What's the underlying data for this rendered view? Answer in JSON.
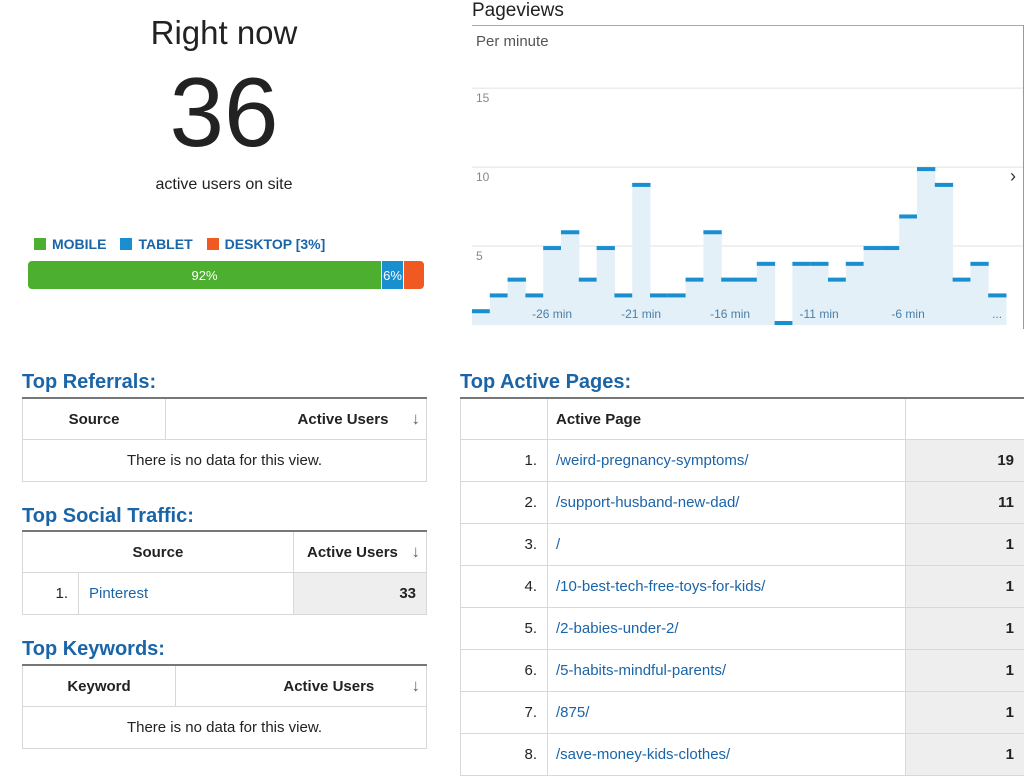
{
  "right_now": {
    "title": "Right now",
    "count": "36",
    "subtitle": "active users on site"
  },
  "devices": {
    "legend": [
      {
        "label": "MOBILE",
        "color": "#4caf2f"
      },
      {
        "label": "TABLET",
        "color": "#1a8fd0"
      },
      {
        "label": "DESKTOP [3%]",
        "color": "#f05a22"
      }
    ],
    "bar": [
      {
        "label": "92%",
        "percent": 92,
        "color": "#4caf2f"
      },
      {
        "label": "6%",
        "percent": 6,
        "color": "#1a8fd0"
      },
      {
        "label": "",
        "percent": 3,
        "color": "#f05a22"
      }
    ]
  },
  "pageviews": {
    "title": "Pageviews",
    "subtitle": "Per minute",
    "next_icon": "chevron-right-icon"
  },
  "chart_data": {
    "type": "bar",
    "ylim": [
      0,
      19
    ],
    "yticks": [
      "5",
      "10",
      "15"
    ],
    "ytick_values": [
      5,
      10,
      15
    ],
    "x_labels": [
      "-26 min",
      "-21 min",
      "-16 min",
      "-11 min",
      "-6 min",
      "..."
    ],
    "x_label_minutes": [
      -26,
      -21,
      -16,
      -11,
      -6,
      -1
    ],
    "minutes": [
      -30,
      -29,
      -28,
      -27,
      -26,
      -25,
      -24,
      -23,
      -22,
      -21,
      -20,
      -19,
      -18,
      -17,
      -16,
      -15,
      -14,
      -13,
      -12,
      -11,
      -10,
      -9,
      -8,
      -7,
      -6,
      -5,
      -4,
      -3,
      -2,
      -1
    ],
    "values": [
      1,
      2,
      3,
      2,
      5,
      6,
      3,
      5,
      2,
      9,
      2,
      2,
      3,
      6,
      3,
      3,
      4,
      0,
      4,
      4,
      3,
      4,
      5,
      5,
      7,
      10,
      9,
      3,
      4,
      2
    ],
    "grid": true,
    "bar_color": "#e3f0f8",
    "cap_color": "#1a8fd0"
  },
  "top_referrals": {
    "heading": "Top Referrals:",
    "col_source": "Source",
    "col_users": "Active Users",
    "empty": "There is no data for this view."
  },
  "top_social": {
    "heading": "Top Social Traffic:",
    "col_source": "Source",
    "col_users": "Active Users",
    "rows": [
      {
        "num": "1.",
        "source": "Pinterest",
        "users": "33"
      }
    ]
  },
  "top_keywords": {
    "heading": "Top Keywords:",
    "col_keyword": "Keyword",
    "col_users": "Active Users",
    "empty": "There is no data for this view."
  },
  "top_pages": {
    "heading": "Top Active Pages:",
    "col_page": "Active Page",
    "rows": [
      {
        "num": "1.",
        "page": "/weird-pregnancy-symptoms/",
        "users": "19"
      },
      {
        "num": "2.",
        "page": "/support-husband-new-dad/",
        "users": "11"
      },
      {
        "num": "3.",
        "page": "/",
        "users": "1"
      },
      {
        "num": "4.",
        "page": "/10-best-tech-free-toys-for-kids/",
        "users": "1"
      },
      {
        "num": "5.",
        "page": "/2-babies-under-2/",
        "users": "1"
      },
      {
        "num": "6.",
        "page": "/5-habits-mindful-parents/",
        "users": "1"
      },
      {
        "num": "7.",
        "page": "/875/",
        "users": "1"
      },
      {
        "num": "8.",
        "page": "/save-money-kids-clothes/",
        "users": "1"
      }
    ]
  },
  "sort_icon": "arrow-down-icon"
}
